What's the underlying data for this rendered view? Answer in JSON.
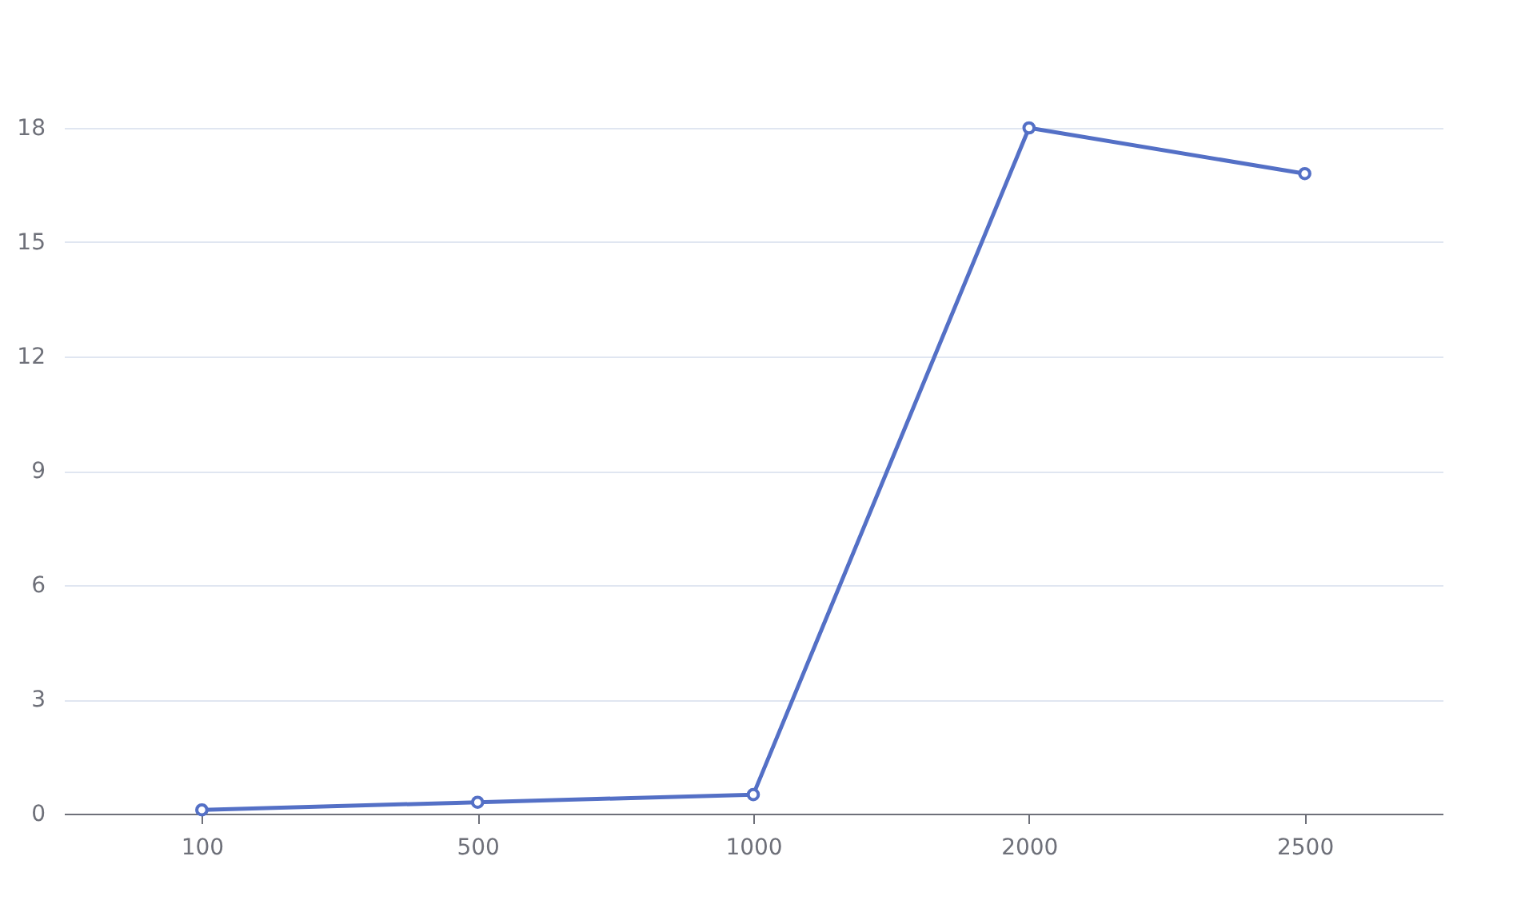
{
  "chart_data": {
    "type": "line",
    "categories": [
      "100",
      "500",
      "1000",
      "2000",
      "2500"
    ],
    "series": [
      {
        "color": "#5470c6",
        "values": [
          0.1,
          0.3,
          0.5,
          18,
          16.8
        ]
      }
    ],
    "ylim": [
      0,
      18
    ],
    "yticks": [
      0,
      3,
      6,
      9,
      12,
      15,
      18
    ],
    "grid": "y",
    "marker": "circle",
    "line_style": "solid"
  }
}
